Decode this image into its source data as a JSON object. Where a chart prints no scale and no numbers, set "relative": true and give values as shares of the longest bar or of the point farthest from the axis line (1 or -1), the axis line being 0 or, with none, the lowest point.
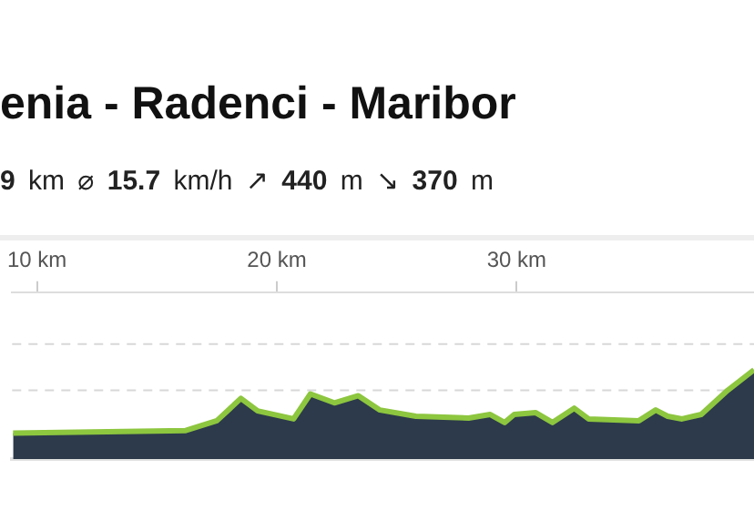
{
  "chart_data": {
    "type": "area",
    "title": "enia - Radenci - Maribor",
    "subtitle": "9 km ⌀ 15.7 km/h ↗ 440 m ↘ 370 m",
    "relative": true,
    "x": [
      9.0,
      16.2,
      17.5,
      18.5,
      19.2,
      20.7,
      21.4,
      22.4,
      23.4,
      24.3,
      25.8,
      28.0,
      28.9,
      29.5,
      29.9,
      30.8,
      31.5,
      32.4,
      33.0,
      35.1,
      35.8,
      36.3,
      36.9,
      37.7,
      38.8,
      39.9
    ],
    "series": [
      {
        "color": "#8dc63f",
        "values": [
          0.29,
          0.32,
          0.43,
          0.68,
          0.54,
          0.45,
          0.73,
          0.63,
          0.71,
          0.55,
          0.48,
          0.46,
          0.5,
          0.41,
          0.5,
          0.52,
          0.41,
          0.57,
          0.45,
          0.43,
          0.55,
          0.48,
          0.45,
          0.5,
          0.77,
          1.0
        ]
      }
    ],
    "xlim": [
      8.96,
      39.9
    ],
    "xticks": [
      {
        "value": 10,
        "label": "10 km"
      },
      {
        "value": 20,
        "label": "20 km"
      },
      {
        "value": 30,
        "label": "30 km"
      }
    ],
    "ref_lines": [
      {
        "axis": "y",
        "value": 0.77,
        "color": "#d8d8d8",
        "line_style": "dashed"
      },
      {
        "axis": "y",
        "value": 1.29,
        "color": "#d8d8d8",
        "line_style": "dashed"
      }
    ],
    "legend": false
  }
}
